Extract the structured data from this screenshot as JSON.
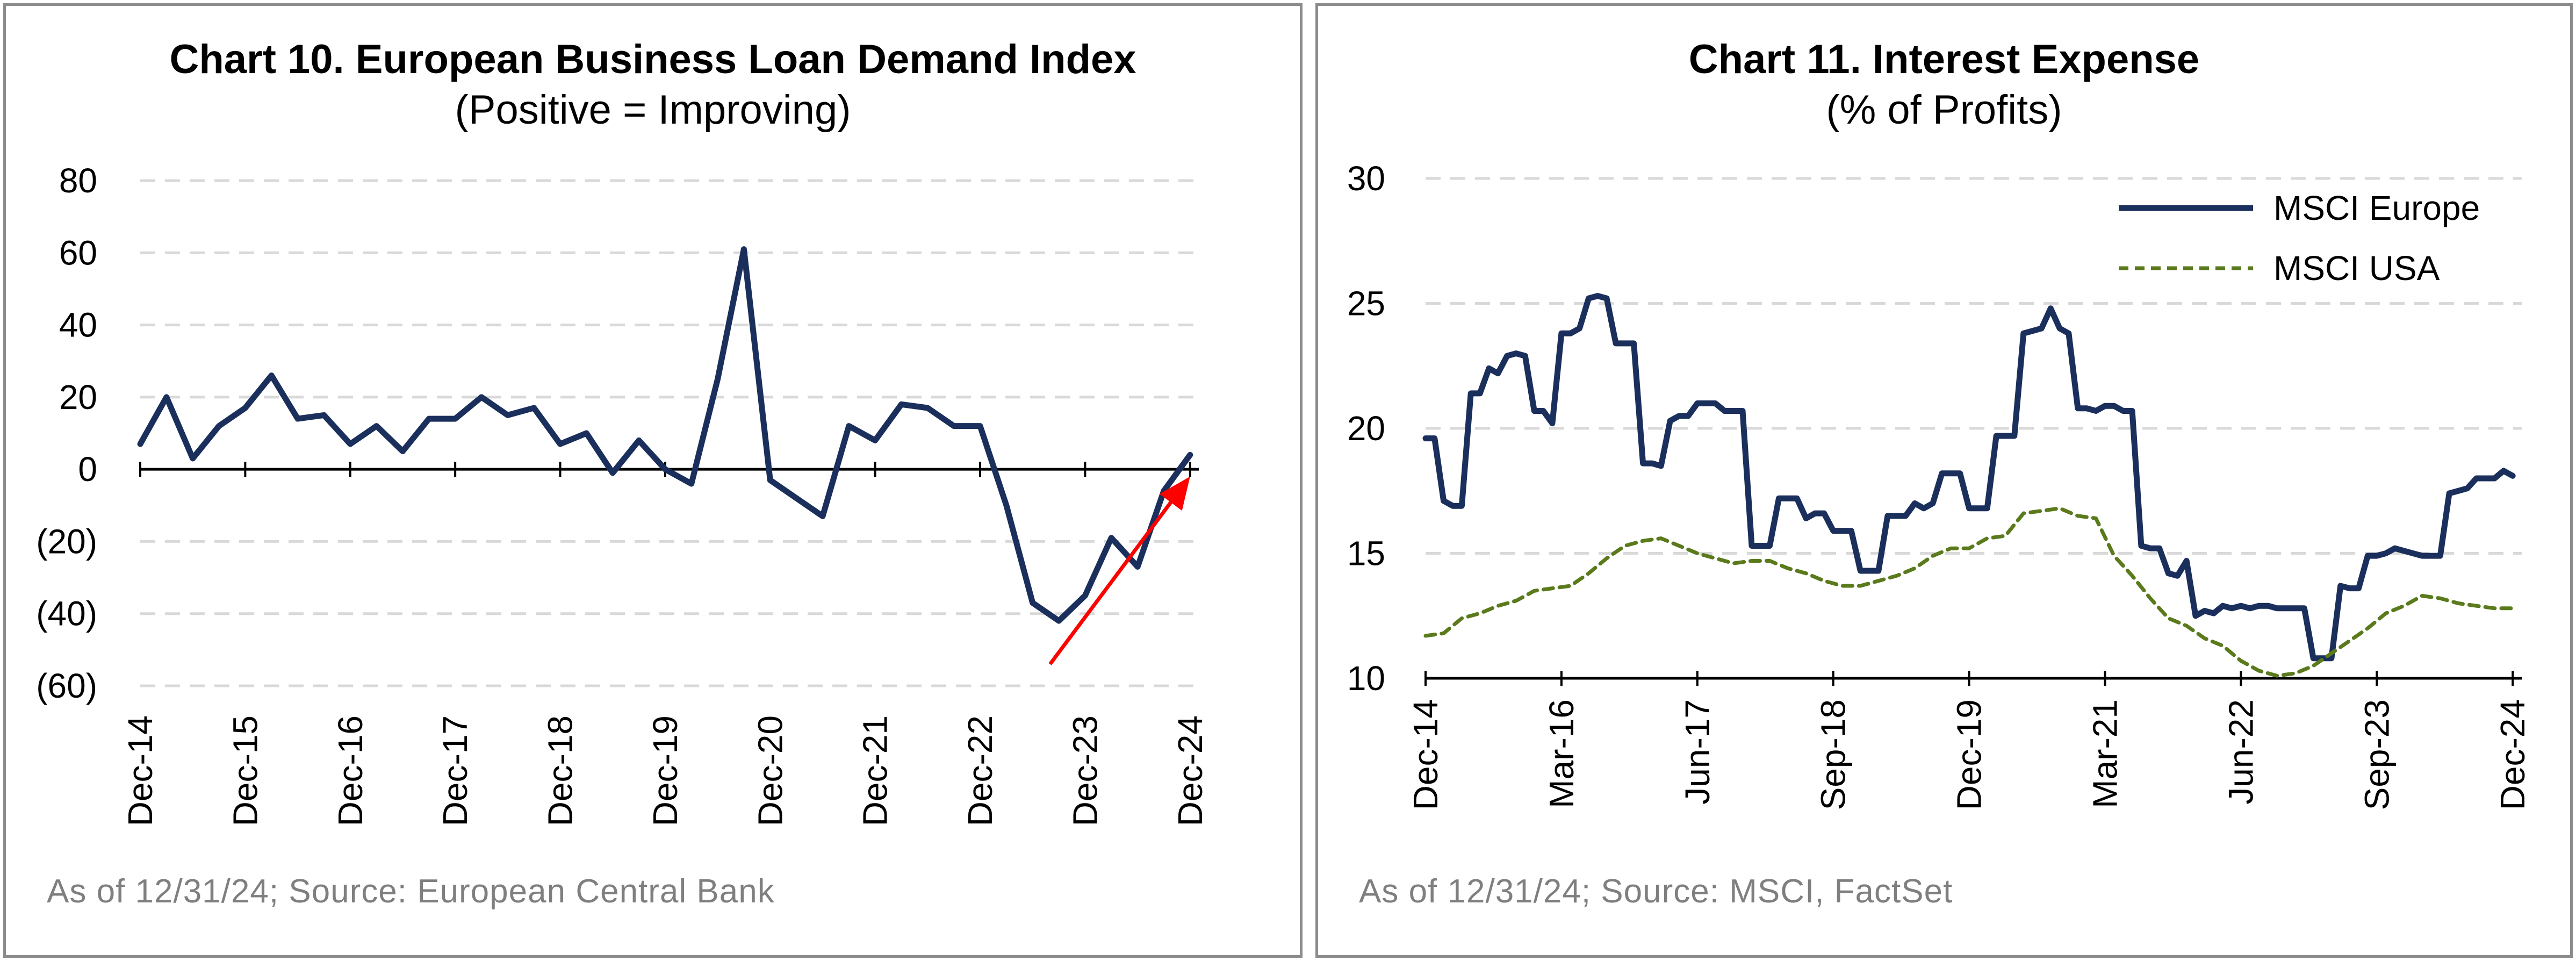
{
  "chart_data": [
    {
      "type": "line",
      "title": "Chart 10. European Business Loan Demand Index",
      "subtitle": "(Positive = Improving)",
      "source": "As of 12/31/24; Source:  European  Central Bank",
      "ylim": [
        -60,
        80
      ],
      "yticks": [
        80,
        60,
        40,
        20,
        0,
        -20,
        -40,
        -60
      ],
      "ytick_labels": [
        "80",
        "60",
        "40",
        "20",
        "0",
        "(20)",
        "(40)",
        "(60)"
      ],
      "xlim": [
        2014.917,
        2025.0
      ],
      "xticks": [
        2014.917,
        2015.917,
        2016.917,
        2017.917,
        2018.917,
        2019.917,
        2020.917,
        2021.917,
        2022.917,
        2023.917,
        2024.917
      ],
      "xtick_labels": [
        "Dec-14",
        "Dec-15",
        "Dec-16",
        "Dec-17",
        "Dec-18",
        "Dec-19",
        "Dec-20",
        "Dec-21",
        "Dec-22",
        "Dec-23",
        "Dec-24"
      ],
      "grid": true,
      "series": [
        {
          "color": "#1b2f5c",
          "x": [
            2014.917,
            2015.167,
            2015.417,
            2015.667,
            2015.917,
            2016.167,
            2016.417,
            2016.667,
            2016.917,
            2017.167,
            2017.417,
            2017.667,
            2017.917,
            2018.167,
            2018.417,
            2018.667,
            2018.917,
            2019.167,
            2019.417,
            2019.667,
            2019.917,
            2020.167,
            2020.417,
            2020.667,
            2020.917,
            2021.167,
            2021.417,
            2021.667,
            2021.917,
            2022.167,
            2022.417,
            2022.667,
            2022.917,
            2023.167,
            2023.417,
            2023.667,
            2023.917,
            2024.167,
            2024.417,
            2024.667,
            2024.917
          ],
          "y": [
            7,
            20,
            3,
            12,
            17,
            26,
            14,
            15,
            7,
            12,
            5,
            14,
            14,
            20,
            15,
            17,
            7,
            10,
            -1,
            8,
            0,
            -4,
            25,
            61,
            -3,
            -8,
            -13,
            12,
            8,
            18,
            17,
            12,
            12,
            -10,
            -37,
            -42,
            -35,
            -19,
            -27,
            -6,
            4
          ]
        }
      ],
      "annotation": {
        "type": "arrow",
        "color": "#ff0000",
        "from": [
          2023.583,
          -54
        ],
        "to": [
          2024.917,
          -2
        ]
      }
    },
    {
      "type": "line",
      "title": "Chart 11. Interest Expense",
      "subtitle": "(% of Profits)",
      "source": "As of 12/31/24; Source:  MSCI,  FactSet",
      "ylim": [
        10,
        30
      ],
      "yticks": [
        30,
        25,
        20,
        15,
        10
      ],
      "ytick_labels": [
        "30",
        "25",
        "20",
        "15",
        "10"
      ],
      "xlim": [
        2014.917,
        2025.0
      ],
      "xticks": [
        2014.917,
        2016.167,
        2017.417,
        2018.667,
        2019.917,
        2021.167,
        2022.417,
        2023.667,
        2024.917
      ],
      "xtick_labels": [
        "Dec-14",
        "Mar-16",
        "Jun-17",
        "Sep-18",
        "Dec-19",
        "Mar-21",
        "Jun-22",
        "Sep-23",
        "Dec-24"
      ],
      "grid": true,
      "legend_position": "top-right",
      "series": [
        {
          "name": "MSCI Europe",
          "color": "#1b2f5c",
          "dash": "solid",
          "x": [
            2014.917,
            2015.0,
            2015.083,
            2015.167,
            2015.25,
            2015.333,
            2015.417,
            2015.5,
            2015.583,
            2015.667,
            2015.75,
            2015.833,
            2015.917,
            2016.0,
            2016.083,
            2016.167,
            2016.25,
            2016.333,
            2016.417,
            2016.5,
            2016.583,
            2016.667,
            2016.75,
            2016.833,
            2016.917,
            2017.0,
            2017.083,
            2017.167,
            2017.25,
            2017.333,
            2017.417,
            2017.5,
            2017.583,
            2017.667,
            2017.75,
            2017.833,
            2017.917,
            2018.0,
            2018.083,
            2018.167,
            2018.25,
            2018.333,
            2018.417,
            2018.5,
            2018.583,
            2018.667,
            2018.75,
            2018.833,
            2018.917,
            2019.0,
            2019.083,
            2019.167,
            2019.25,
            2019.333,
            2019.417,
            2019.5,
            2019.583,
            2019.667,
            2019.75,
            2019.833,
            2019.917,
            2020.0,
            2020.083,
            2020.167,
            2020.25,
            2020.333,
            2020.417,
            2020.5,
            2020.583,
            2020.667,
            2020.75,
            2020.833,
            2020.917,
            2021.0,
            2021.083,
            2021.167,
            2021.25,
            2021.333,
            2021.417,
            2021.5,
            2021.583,
            2021.667,
            2021.75,
            2021.833,
            2021.917,
            2022.0,
            2022.083,
            2022.167,
            2022.25,
            2022.333,
            2022.417,
            2022.5,
            2022.583,
            2022.667,
            2022.75,
            2022.833,
            2022.917,
            2023.0,
            2023.083,
            2023.167,
            2023.25,
            2023.333,
            2023.417,
            2023.5,
            2023.583,
            2023.667,
            2023.75,
            2023.833,
            2023.917,
            2024.0,
            2024.083,
            2024.167,
            2024.25,
            2024.333,
            2024.417,
            2024.5,
            2024.583,
            2024.667,
            2024.75,
            2024.833,
            2024.917
          ],
          "y": [
            19.6,
            19.6,
            17.1,
            16.9,
            16.9,
            21.4,
            21.4,
            22.4,
            22.2,
            22.9,
            23.0,
            22.9,
            20.7,
            20.7,
            20.2,
            23.8,
            23.8,
            24.0,
            25.2,
            25.3,
            25.2,
            23.4,
            23.4,
            23.4,
            18.6,
            18.6,
            18.5,
            20.3,
            20.5,
            20.5,
            21.0,
            21.0,
            21.0,
            20.7,
            20.7,
            20.7,
            15.3,
            15.3,
            15.3,
            17.2,
            17.2,
            17.2,
            16.4,
            16.6,
            16.6,
            15.9,
            15.9,
            15.9,
            14.3,
            14.3,
            14.3,
            16.5,
            16.5,
            16.5,
            17.0,
            16.8,
            17.0,
            18.2,
            18.2,
            18.2,
            16.8,
            16.8,
            16.8,
            19.7,
            19.7,
            19.7,
            23.8,
            23.9,
            24.0,
            24.8,
            24.0,
            23.8,
            20.8,
            20.8,
            20.7,
            20.9,
            20.9,
            20.7,
            20.7,
            15.3,
            15.2,
            15.2,
            14.2,
            14.1,
            14.7,
            12.5,
            12.7,
            12.6,
            12.9,
            12.8,
            12.9,
            12.8,
            12.9,
            12.9,
            12.8,
            12.8,
            12.8,
            12.8,
            10.8,
            10.8,
            10.8,
            13.7,
            13.6,
            13.6,
            14.9,
            14.9,
            15.0,
            15.2,
            15.1,
            15.0,
            14.9,
            14.9,
            14.9,
            17.4,
            17.5,
            17.6,
            18.0,
            18.0,
            18.0,
            18.3,
            18.1
          ]
        },
        {
          "name": "MSCI USA",
          "color": "#5a7a1c",
          "dash": "dashed",
          "x": [
            2014.917,
            2015.083,
            2015.25,
            2015.417,
            2015.583,
            2015.75,
            2015.917,
            2016.083,
            2016.25,
            2016.417,
            2016.583,
            2016.75,
            2016.917,
            2017.083,
            2017.25,
            2017.417,
            2017.583,
            2017.75,
            2017.917,
            2018.083,
            2018.25,
            2018.417,
            2018.583,
            2018.75,
            2018.917,
            2019.083,
            2019.25,
            2019.417,
            2019.583,
            2019.75,
            2019.917,
            2020.083,
            2020.25,
            2020.417,
            2020.583,
            2020.75,
            2020.917,
            2021.083,
            2021.25,
            2021.417,
            2021.583,
            2021.75,
            2021.917,
            2022.083,
            2022.25,
            2022.417,
            2022.583,
            2022.75,
            2022.917,
            2023.083,
            2023.25,
            2023.417,
            2023.583,
            2023.75,
            2023.917,
            2024.083,
            2024.25,
            2024.417,
            2024.583,
            2024.75,
            2024.917
          ],
          "y": [
            11.7,
            11.8,
            12.4,
            12.6,
            12.9,
            13.1,
            13.5,
            13.6,
            13.7,
            14.2,
            14.8,
            15.3,
            15.5,
            15.6,
            15.3,
            15.0,
            14.8,
            14.6,
            14.7,
            14.7,
            14.4,
            14.2,
            13.9,
            13.7,
            13.7,
            13.9,
            14.1,
            14.4,
            14.9,
            15.2,
            15.2,
            15.6,
            15.7,
            16.6,
            16.7,
            16.8,
            16.5,
            16.4,
            14.9,
            14.1,
            13.2,
            12.4,
            12.1,
            11.6,
            11.3,
            10.7,
            10.3,
            10.1,
            10.2,
            10.5,
            11.0,
            11.5,
            12.0,
            12.6,
            12.9,
            13.3,
            13.2,
            13.0,
            12.9,
            12.8,
            12.8
          ]
        }
      ]
    }
  ]
}
